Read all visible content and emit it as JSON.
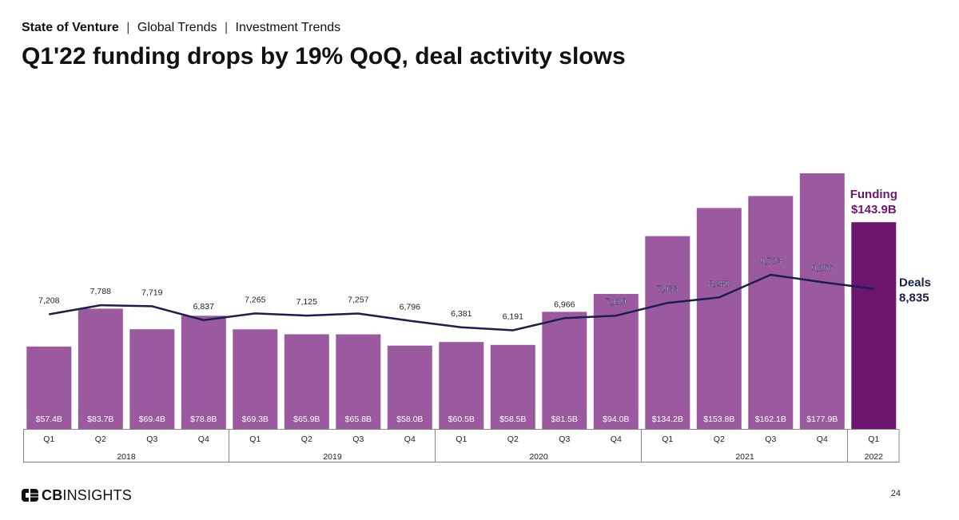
{
  "header": {
    "breadcrumb": [
      "State of Venture",
      "Global Trends",
      "Investment Trends"
    ],
    "title": "Q1'22 funding drops by 19% QoQ, deal activity slows"
  },
  "chart_data": {
    "type": "bar",
    "categories": [
      "Q1",
      "Q2",
      "Q3",
      "Q4",
      "Q1",
      "Q2",
      "Q3",
      "Q4",
      "Q1",
      "Q2",
      "Q3",
      "Q4",
      "Q1",
      "Q2",
      "Q3",
      "Q4",
      "Q1"
    ],
    "years": [
      {
        "label": "2018",
        "count": 4
      },
      {
        "label": "2019",
        "count": 4
      },
      {
        "label": "2020",
        "count": 4
      },
      {
        "label": "2021",
        "count": 4
      },
      {
        "label": "2022",
        "count": 1
      }
    ],
    "series": [
      {
        "name": "Funding",
        "unit": "$B",
        "values": [
          57.4,
          83.7,
          69.4,
          78.8,
          69.3,
          65.9,
          65.8,
          58.0,
          60.5,
          58.5,
          81.5,
          94.0,
          134.2,
          153.8,
          162.1,
          177.9,
          143.9
        ],
        "labels": [
          "$57.4B",
          "$83.7B",
          "$69.4B",
          "$78.8B",
          "$69.3B",
          "$65.9B",
          "$65.8B",
          "$58.0B",
          "$60.5B",
          "$58.5B",
          "$81.5B",
          "$94.0B",
          "$134.2B",
          "$153.8B",
          "$162.1B",
          "$177.9B",
          ""
        ]
      },
      {
        "name": "Deals",
        "values": [
          7208,
          7788,
          7719,
          6837,
          7265,
          7125,
          7257,
          6796,
          6381,
          6191,
          6966,
          7119,
          7933,
          8280,
          9723,
          9256,
          8835
        ],
        "labels": [
          "7,208",
          "7,788",
          "7,719",
          "6,837",
          "7,265",
          "7,125",
          "7,257",
          "6,796",
          "6,381",
          "6,191",
          "6,966",
          "7,119",
          "7,933",
          "8,280",
          "9,723",
          "9,256",
          ""
        ]
      }
    ],
    "callouts": {
      "funding_title": "Funding",
      "funding_value": "$143.9B",
      "deals_title": "Deals",
      "deals_value": "8,835"
    },
    "colors": {
      "bar": "#9b59a0",
      "bar_last": "#6e1571",
      "line": "#1a1f4e",
      "axis": "#888888"
    }
  },
  "footer": {
    "brand": "CBINSIGHTS",
    "brand_bold": "CB",
    "brand_rest": "INSIGHTS",
    "page_number": "24"
  }
}
